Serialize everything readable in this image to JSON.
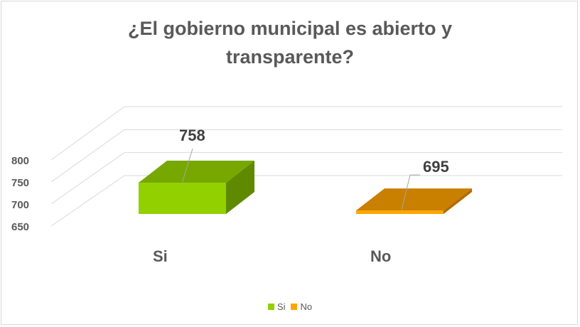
{
  "chart_data": {
    "type": "bar",
    "title_line1": "¿El gobierno municipal es abierto y",
    "title_line2": "transparente?",
    "categories": [
      "Si",
      "No"
    ],
    "values": [
      758,
      695
    ],
    "colors": [
      "#92d000",
      "#ffa500"
    ],
    "ylim": [
      650,
      800
    ],
    "yticks": [
      650,
      700,
      750,
      800
    ],
    "legend": [
      "Si",
      "No"
    ],
    "legend_position": "bottom",
    "grid": true
  }
}
